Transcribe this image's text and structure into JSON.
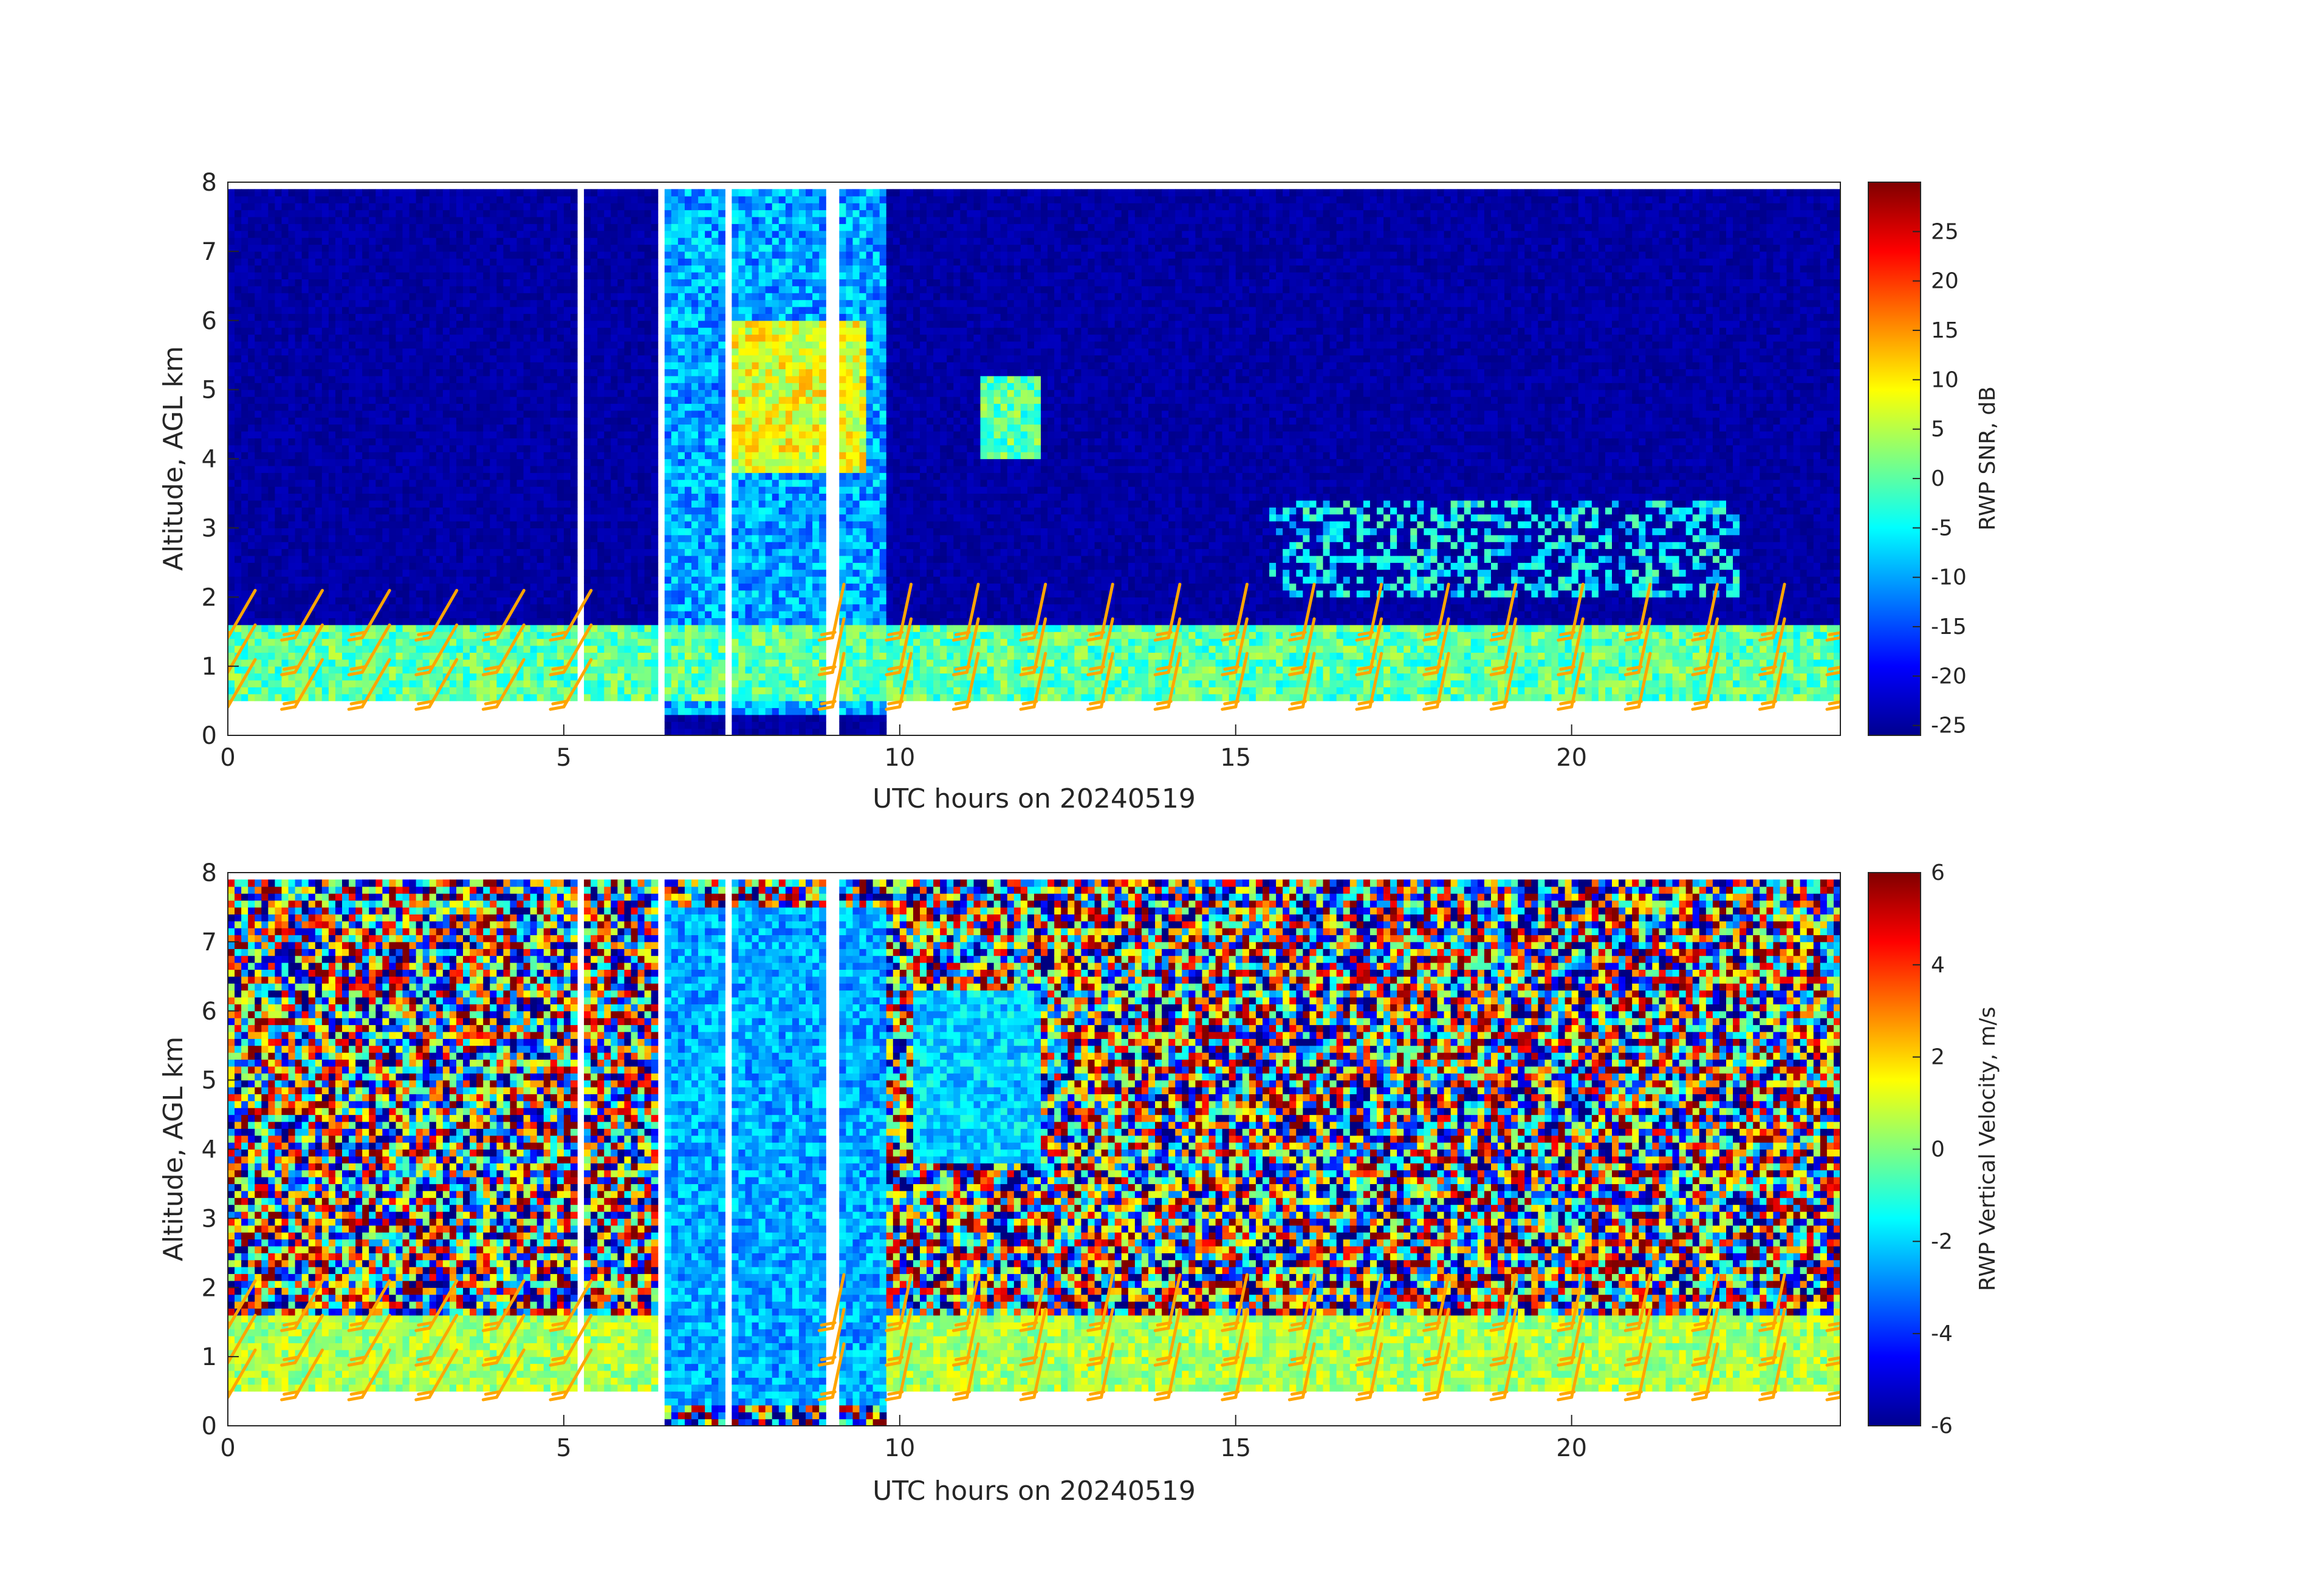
{
  "chart_data": [
    {
      "type": "heatmap",
      "xlabel": "UTC hours on 20240519",
      "ylabel": "Altitude, AGL km",
      "xlim": [
        0,
        24
      ],
      "ylim": [
        0,
        8
      ],
      "x_ticks": [
        "0",
        "5",
        "10",
        "15",
        "20"
      ],
      "x_tick_values": [
        0,
        5,
        10,
        15,
        20
      ],
      "y_ticks": [
        "0",
        "1",
        "2",
        "3",
        "4",
        "5",
        "6",
        "7",
        "8"
      ],
      "y_tick_values": [
        0,
        1,
        2,
        3,
        4,
        5,
        6,
        7,
        8
      ],
      "colorbar": {
        "label": "RWP SNR, dB",
        "range": [
          -26,
          30
        ],
        "ticks": [
          "25",
          "20",
          "15",
          "10",
          "5",
          "0",
          "-5",
          "-10",
          "-15",
          "-20",
          "-25"
        ],
        "tick_values": [
          25,
          20,
          15,
          10,
          5,
          0,
          -5,
          -10,
          -15,
          -20,
          -25
        ],
        "colormap": "jet"
      },
      "background_level_db": -24,
      "data_gaps_hours": [
        [
          5.2,
          5.35
        ],
        [
          6.4,
          6.5
        ],
        [
          7.45,
          7.55
        ],
        [
          8.95,
          9.1
        ]
      ],
      "features": [
        {
          "name": "boundary-layer echo",
          "hours": [
            0,
            24
          ],
          "altitude_km": [
            0.5,
            1.6
          ],
          "snr_db": 0
        },
        {
          "name": "precipitation band",
          "hours": [
            6.4,
            9.8
          ],
          "altitude_km": [
            0.3,
            8.0
          ],
          "snr_db": -10
        },
        {
          "name": "cloud layer",
          "hours": [
            7.5,
            9.5
          ],
          "altitude_km": [
            3.8,
            6.0
          ],
          "snr_db": 8
        },
        {
          "name": "cloud layer",
          "hours": [
            11.2,
            12.1
          ],
          "altitude_km": [
            4.0,
            5.2
          ],
          "snr_db": 0
        },
        {
          "name": "elevated layer",
          "hours": [
            15.5,
            22.5
          ],
          "altitude_km": [
            2.0,
            3.4
          ],
          "snr_db": -5
        }
      ],
      "wind_barbs": {
        "color": "#FFA500",
        "hours": [
          0,
          1,
          2,
          3,
          4,
          5,
          9,
          10,
          11,
          12,
          13,
          14,
          15,
          16,
          17,
          18,
          19,
          20,
          21,
          22,
          23,
          24
        ],
        "altitudes_km": [
          0.5,
          1.0,
          1.5
        ]
      }
    },
    {
      "type": "heatmap",
      "xlabel": "UTC hours on 20240519",
      "ylabel": "Altitude, AGL km",
      "xlim": [
        0,
        24
      ],
      "ylim": [
        0,
        8
      ],
      "x_ticks": [
        "0",
        "5",
        "10",
        "15",
        "20"
      ],
      "x_tick_values": [
        0,
        5,
        10,
        15,
        20
      ],
      "y_ticks": [
        "0",
        "1",
        "2",
        "3",
        "4",
        "5",
        "6",
        "7",
        "8"
      ],
      "y_tick_values": [
        0,
        1,
        2,
        3,
        4,
        5,
        6,
        7,
        8
      ],
      "colorbar": {
        "label": "RWP Vertical Velocity, m/s",
        "range": [
          -6,
          6
        ],
        "ticks": [
          "6",
          "4",
          "2",
          "0",
          "-2",
          "-4",
          "-6"
        ],
        "tick_values": [
          6,
          4,
          2,
          0,
          -2,
          -4,
          -6
        ],
        "colormap": "jet"
      },
      "background": "noise above boundary layer",
      "features": [
        {
          "name": "boundary-layer velocity",
          "hours": [
            0,
            24
          ],
          "altitude_km": [
            0.5,
            1.6
          ],
          "velocity_ms": 0.5
        },
        {
          "name": "precipitation fall speed",
          "hours": [
            6.4,
            9.8
          ],
          "altitude_km": [
            0.3,
            7.5
          ],
          "velocity_ms": -2.5
        },
        {
          "name": "cloud descent",
          "hours": [
            10.2,
            12.1
          ],
          "altitude_km": [
            3.8,
            6.3
          ],
          "velocity_ms": -2
        }
      ]
    }
  ]
}
